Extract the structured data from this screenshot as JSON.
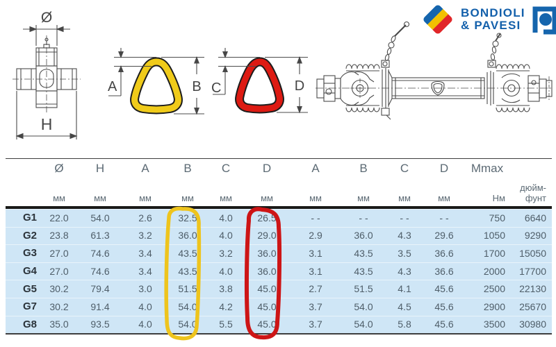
{
  "brand": {
    "line1": "BONDIOLI",
    "line2": "& PAVESI",
    "text_color": "#1360ab",
    "flag_blue": "#1565ad",
    "flag_yellow": "#f2c101",
    "flag_red": "#e12629"
  },
  "diagrams": {
    "cross_dia_label": "Ø",
    "cross_height_label": "H",
    "outer_tube_wall_label": "A",
    "outer_tube_size_label": "B",
    "outer_tube_color": "#f0cb1a",
    "inner_tube_wall_label": "C",
    "inner_tube_size_label": "D",
    "inner_tube_color": "#dd1a12"
  },
  "table": {
    "dim_headers": [
      "Ø",
      "H",
      "A",
      "B",
      "C",
      "D",
      "A",
      "B",
      "C",
      "D"
    ],
    "mmax_header": "Mmax",
    "units": [
      "мм",
      "мм",
      "мм",
      "мм",
      "мм",
      "мм",
      "мм",
      "мм",
      "мм",
      "мм",
      "Нм",
      "дюйм-фунт"
    ],
    "row_background": "#cfe6f6",
    "highlight_yellow": "#eec41d",
    "highlight_red": "#cd1516",
    "rows": [
      {
        "label": "G1",
        "values": [
          "22.0",
          "54.0",
          "2.6",
          "32.5",
          "4.0",
          "26.5",
          "- -",
          "- -",
          "- -",
          "- -",
          "750",
          "6640"
        ]
      },
      {
        "label": "G2",
        "values": [
          "23.8",
          "61.3",
          "3.2",
          "36.0",
          "4.0",
          "29.0",
          "2.9",
          "36.0",
          "4.3",
          "29.6",
          "1050",
          "9290"
        ]
      },
      {
        "label": "G3",
        "values": [
          "27.0",
          "74.6",
          "3.4",
          "43.5",
          "3.2",
          "36.0",
          "3.1",
          "43.5",
          "3.5",
          "36.6",
          "1700",
          "15050"
        ]
      },
      {
        "label": "G4",
        "values": [
          "27.0",
          "74.6",
          "3.4",
          "43.5",
          "4.0",
          "36.0",
          "3.1",
          "43.5",
          "4.3",
          "36.6",
          "2000",
          "17700"
        ]
      },
      {
        "label": "G5",
        "values": [
          "30.2",
          "79.4",
          "3.0",
          "51.5",
          "3.8",
          "45.0",
          "2.7",
          "51.5",
          "4.1",
          "45.6",
          "2500",
          "22130"
        ]
      },
      {
        "label": "G7",
        "values": [
          "30.2",
          "91.4",
          "4.0",
          "54.0",
          "4.2",
          "45.0",
          "3.7",
          "54.0",
          "4.5",
          "45.6",
          "2900",
          "25670"
        ]
      },
      {
        "label": "G8",
        "values": [
          "35.0",
          "93.5",
          "4.0",
          "54.0",
          "5.5",
          "45.0",
          "3.7",
          "54.0",
          "5.8",
          "45.6",
          "3500",
          "30980"
        ]
      }
    ]
  }
}
